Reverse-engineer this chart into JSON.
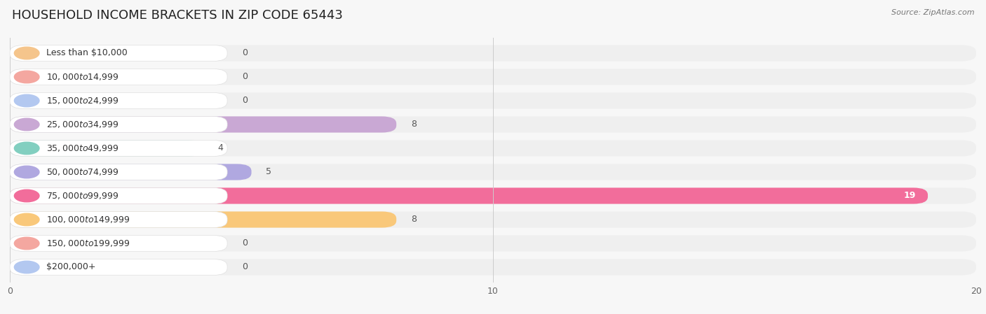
{
  "title": "HOUSEHOLD INCOME BRACKETS IN ZIP CODE 65443",
  "source": "Source: ZipAtlas.com",
  "categories": [
    "Less than $10,000",
    "$10,000 to $14,999",
    "$15,000 to $24,999",
    "$25,000 to $34,999",
    "$35,000 to $49,999",
    "$50,000 to $74,999",
    "$75,000 to $99,999",
    "$100,000 to $149,999",
    "$150,000 to $199,999",
    "$200,000+"
  ],
  "values": [
    0,
    0,
    0,
    8,
    4,
    5,
    19,
    8,
    0,
    0
  ],
  "bar_colors": [
    "#f5c58c",
    "#f4a7a0",
    "#b3c8f0",
    "#c9a8d4",
    "#82cfc0",
    "#b0a8e0",
    "#f26d9b",
    "#f9c87a",
    "#f4a7a0",
    "#b3c8f0"
  ],
  "xlim": [
    0,
    20
  ],
  "xticks": [
    0,
    10,
    20
  ],
  "background_color": "#f7f7f7",
  "title_fontsize": 13,
  "label_fontsize": 9,
  "value_fontsize": 9
}
